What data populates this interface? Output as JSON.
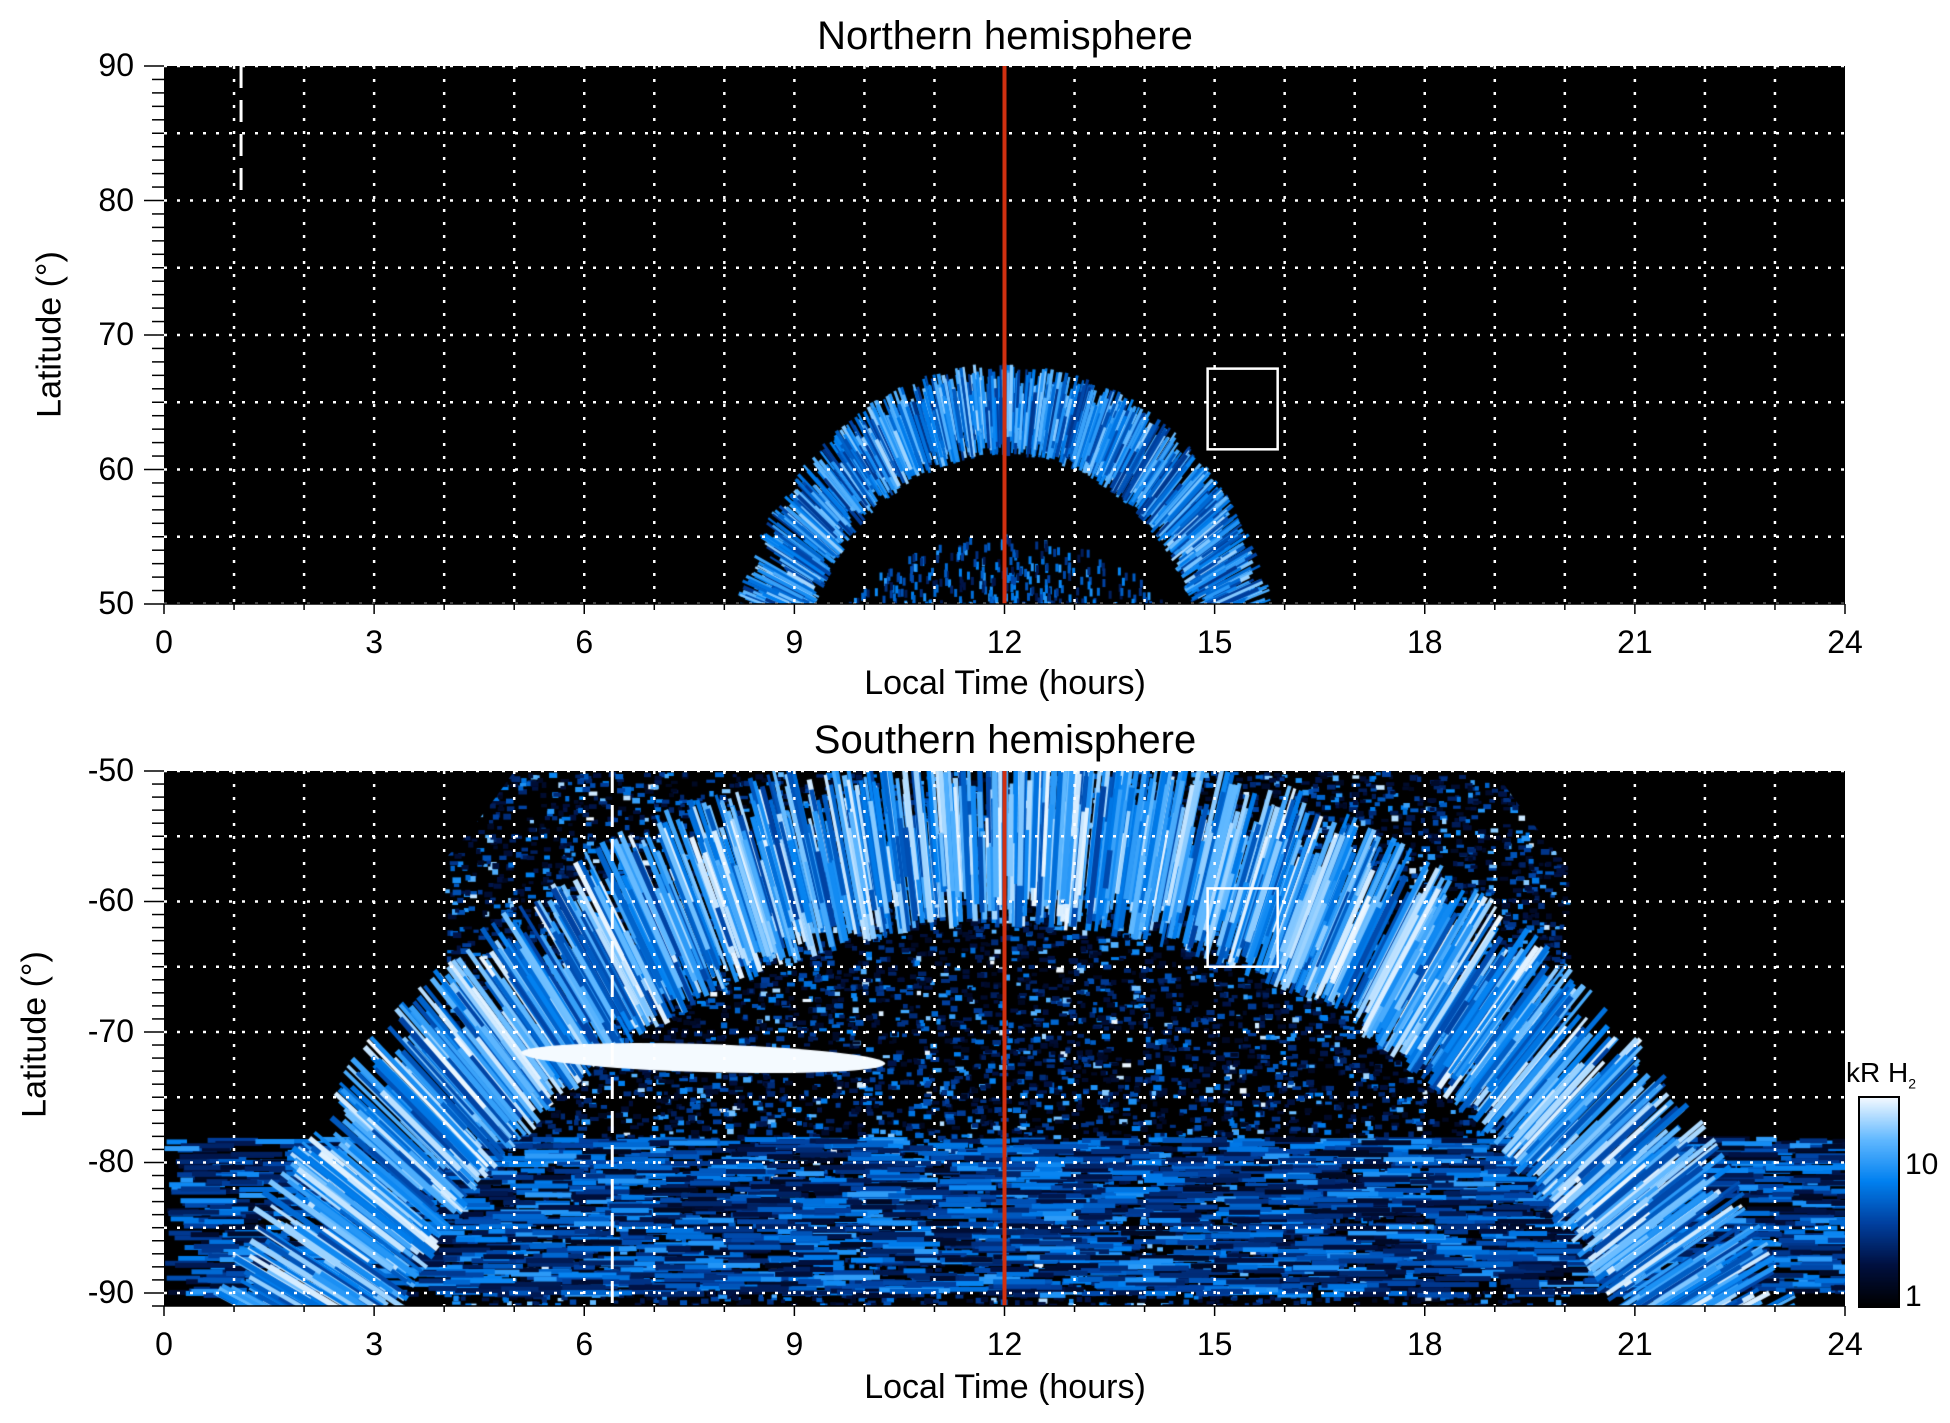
{
  "chart_data": [
    {
      "type": "heatmap",
      "title": "Northern hemisphere",
      "xlabel": "Local Time (hours)",
      "ylabel": "Latitude (°)",
      "xlim": [
        0,
        24
      ],
      "ylim": [
        50,
        90
      ],
      "xticks": [
        "0",
        "3",
        "6",
        "9",
        "12",
        "15",
        "18",
        "21",
        "24"
      ],
      "yticks": [
        "50",
        "60",
        "70",
        "80",
        "90"
      ],
      "grid": true,
      "noon_line_lt": 12,
      "noon_line_color": "#d03010",
      "dashed_line_lt": 1.1,
      "box": {
        "lt": [
          14.9,
          15.9
        ],
        "lat": [
          61.5,
          67.5
        ]
      },
      "oval": {
        "lt_range": [
          8.3,
          16.3
        ],
        "peak_lat": 67.5,
        "inner_lat_noon": 58
      }
    },
    {
      "type": "heatmap",
      "title": "Southern hemisphere",
      "xlabel": "Local Time (hours)",
      "ylabel": "Latitude (°)",
      "xlim": [
        0,
        24
      ],
      "ylim": [
        -91,
        -50
      ],
      "xticks": [
        "0",
        "3",
        "6",
        "9",
        "12",
        "15",
        "18",
        "21",
        "24"
      ],
      "yticks": [
        "-50",
        "-60",
        "-70",
        "-80",
        "-90"
      ],
      "grid": true,
      "noon_line_lt": 12,
      "noon_line_color": "#d03010",
      "dashed_line_lt": 6.4,
      "box": {
        "lt": [
          14.9,
          15.9
        ],
        "lat": [
          -59,
          -65
        ]
      },
      "bright_band": {
        "lt": [
          5,
          10.5
        ],
        "lat": -72
      }
    }
  ],
  "colorbar": {
    "label": "kR H",
    "label_sub": "2",
    "ticks": [
      "10",
      "1"
    ],
    "scale": "log",
    "range": [
      1,
      25
    ],
    "colors": [
      "#000000",
      "#001040",
      "#0040a0",
      "#0080f0",
      "#60b8ff",
      "#f0f8ff"
    ]
  }
}
